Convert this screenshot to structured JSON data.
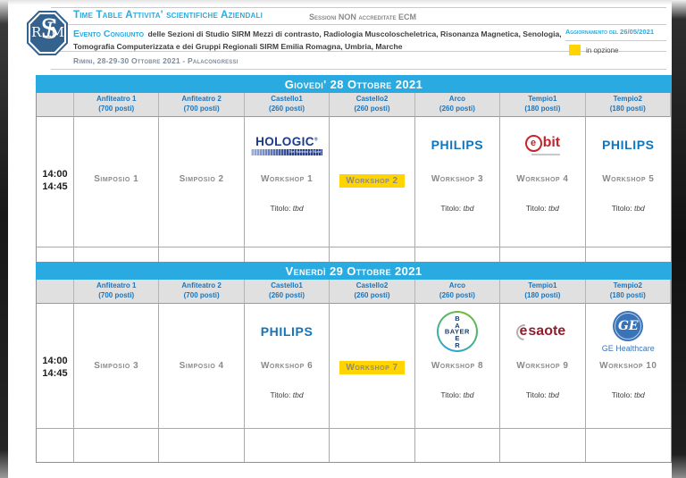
{
  "header": {
    "title": "Time Table Attivita' scientifiche Aziendali",
    "sessions_note": "Sessioni NON accreditate ECM",
    "event_label": "Evento Congiunto",
    "event_text": "delle Sezioni di Studio SIRM Mezzi di contrasto, Radiologia Muscoloscheletrica, Risonanza Magnetica, Senologia, Tomografia Computerizzata e dei Gruppi Regionali SIRM Emilia Romagna, Umbria, Marche",
    "venue_line": "Rimini, 28-29-30 Ottobre 2021 - Palacongressi",
    "update_label": "Aggiornamento del",
    "update_date": "26/05/2021",
    "legend_label": "in opzione",
    "logo": {
      "left": "R",
      "center_s": "S",
      "center_i": "I",
      "right": "M"
    }
  },
  "colors": {
    "accent_blue": "#29ABE2",
    "column_header_blue": "#1B75BC",
    "highlight_yellow": "#FFD400",
    "label_gray": "#8A8A8A"
  },
  "logos": {
    "philips": "PHILIPS",
    "hologic": "HOLOGIC",
    "hologic_reg": "®",
    "hologic_tagline": "The Science of Sure",
    "ebit_e": "e",
    "ebit_rest": "bit",
    "bayer": "BAYER",
    "bayer_v1": "B",
    "bayer_v2": "A",
    "bayer_v3": "E",
    "bayer_v4": "R",
    "esaote_e": "e",
    "esaote_rest": "saote",
    "ge_monogram": "GE",
    "ge_name": "GE Healthcare"
  },
  "tables": [
    {
      "title": "Giovedi' 28 Ottobre 2021",
      "time_start": "14:00",
      "time_end": "14:45",
      "columns": [
        {
          "name": "Anfiteatro 1",
          "capacity": "(700 posti)"
        },
        {
          "name": "Anfiteatro 2",
          "capacity": "(700 posti)"
        },
        {
          "name": "Castello1",
          "capacity": "(260 posti)"
        },
        {
          "name": "Castello2",
          "capacity": "(260 posti)"
        },
        {
          "name": "Arco",
          "capacity": "(260 posti)"
        },
        {
          "name": "Tempio1",
          "capacity": "(180 posti)"
        },
        {
          "name": "Tempio2",
          "capacity": "(180 posti)"
        }
      ],
      "cells": [
        {
          "label": "Simposio 1"
        },
        {
          "label": "Simposio 2"
        },
        {
          "label": "Workshop 1",
          "titolo_label": "Titolo:",
          "titolo_value": "tbd"
        },
        {
          "label": "Workshop 2"
        },
        {
          "label": "Workshop 3",
          "titolo_label": "Titolo:",
          "titolo_value": "tbd"
        },
        {
          "label": "Workshop 4",
          "titolo_label": "Titolo:",
          "titolo_value": "tbd"
        },
        {
          "label": "Workshop 5",
          "titolo_label": "Titolo:",
          "titolo_value": "tbd"
        }
      ]
    },
    {
      "title": "Venerdì 29 Ottobre 2021",
      "time_start": "14:00",
      "time_end": "14:45",
      "columns": [
        {
          "name": "Anfiteatro 1",
          "capacity": "(700 posti)"
        },
        {
          "name": "Anfiteatro 2",
          "capacity": "(700 posti)"
        },
        {
          "name": "Castello1",
          "capacity": "(260 posti)"
        },
        {
          "name": "Castello2",
          "capacity": "(260 posti)"
        },
        {
          "name": "Arco",
          "capacity": "(260 posti)"
        },
        {
          "name": "Tempio1",
          "capacity": "(180 posti)"
        },
        {
          "name": "Tempio2",
          "capacity": "(180 posti)"
        }
      ],
      "cells": [
        {
          "label": "Simposio 3"
        },
        {
          "label": "Simposio 4"
        },
        {
          "label": "Workshop 6",
          "titolo_label": "Titolo:",
          "titolo_value": "tbd"
        },
        {
          "label": "Workshop 7"
        },
        {
          "label": "Workshop 8",
          "titolo_label": "Titolo:",
          "titolo_value": "tbd"
        },
        {
          "label": "Workshop 9",
          "titolo_label": "Titolo:",
          "titolo_value": "tbd"
        },
        {
          "label": "Workshop 10",
          "titolo_label": "Titolo:",
          "titolo_value": "tbd"
        }
      ]
    }
  ]
}
